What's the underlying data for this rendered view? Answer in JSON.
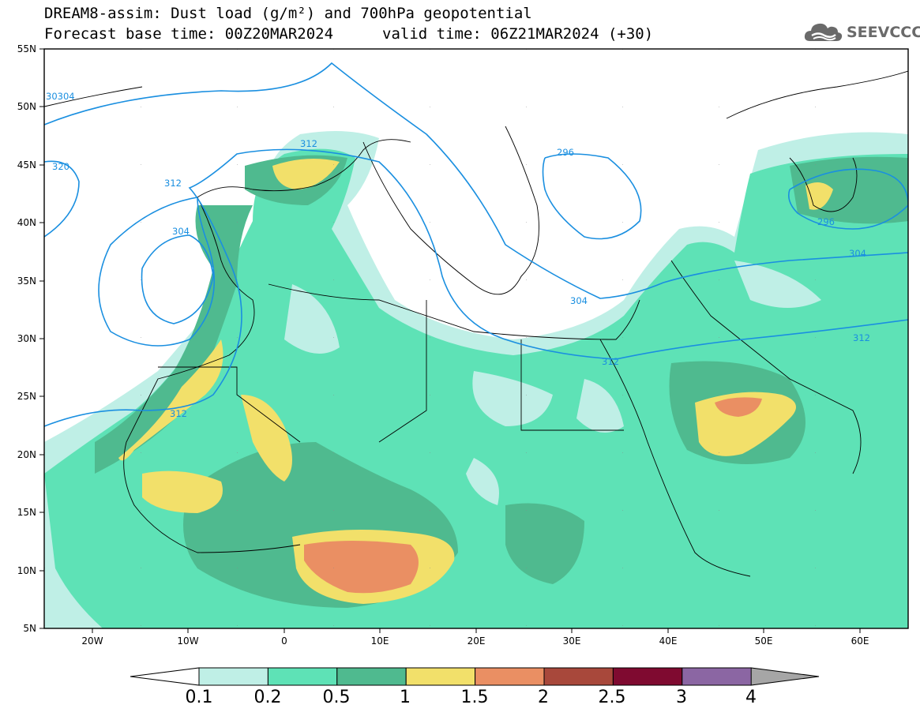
{
  "header": {
    "title": "DREAM8-assim: Dust load (g/m²) and 700hPa geopotential",
    "base_time": "Forecast base time: 00Z20MAR2024",
    "valid_time": "valid time: 06Z21MAR2024 (+30)"
  },
  "logo": {
    "text": "SEEVCCC",
    "icon": "cloud-icon"
  },
  "axes": {
    "lat_labels": [
      "55N",
      "50N",
      "45N",
      "40N",
      "35N",
      "30N",
      "25N",
      "20N",
      "15N",
      "10N",
      "5N"
    ],
    "lon_labels": [
      "20W",
      "10W",
      "0",
      "10E",
      "20E",
      "30E",
      "40E",
      "50E",
      "60E"
    ]
  },
  "contour_labels": [
    "30304",
    "320",
    "312",
    "304",
    "312",
    "296",
    "304",
    "312",
    "312",
    "296",
    "304",
    "312"
  ],
  "colorbar": {
    "labels": [
      "0.1",
      "0.2",
      "0.5",
      "1",
      "1.5",
      "2",
      "2.5",
      "3",
      "4"
    ],
    "colors": [
      "#bfefe6",
      "#5ee2b6",
      "#4fba8f",
      "#f2e06a",
      "#ea8f63",
      "#a8483b",
      "#7f0a30",
      "#8b66a3",
      "#a6a6a6"
    ]
  }
}
